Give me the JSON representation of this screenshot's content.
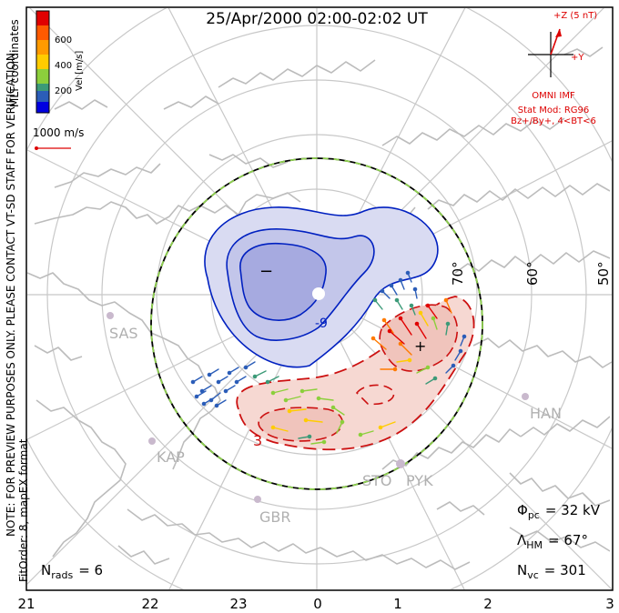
{
  "title": "25/Apr/2000 02:00-02:02 UT",
  "velocity_scale": {
    "label": "Vel [m/s]",
    "ticks": [
      "600",
      "400",
      "200"
    ],
    "colors": [
      "#e00000",
      "#ff7a00",
      "#ffcc00",
      "#8ccf3c",
      "#3c9a78",
      "#2b5db8",
      "#0000e0"
    ]
  },
  "coord_label": "MLT coordinates",
  "reference_vector": "1000 m/s",
  "notes": {
    "preview": "NOTE: FOR PREVIEW PURPOSES ONLY. PLEASE CONTACT VT-SD STAFF FOR VERIFICATION.",
    "fit": "FitOrder: 8, mapEX format"
  },
  "imf": {
    "z_label": "+Z (5 nT)",
    "y_label": "+Y",
    "source": "OMNI IMF",
    "model": "Stat Mod: RG96",
    "bin": "Bz+/By+, 4<BT<6"
  },
  "latitude_labels": [
    "70°",
    "60°",
    "50°"
  ],
  "stations": [
    "SAS",
    "KAP",
    "GBR",
    "STO",
    "PYK",
    "HAN"
  ],
  "contour_labels": {
    "neg_minus": "−",
    "neg_nine": "-9",
    "pos_three": "3",
    "pos_plus": "+"
  },
  "stats": {
    "nrads_label": "N",
    "nrads_sub": "rads",
    "nrads_value": "= 6",
    "phi_label": "Φ",
    "phi_sub": "pc",
    "phi_value": "= 32 kV",
    "lambda_label": "Λ",
    "lambda_sub": "HM",
    "lambda_value": "= 67°",
    "nvc_label": "N",
    "nvc_sub": "vc",
    "nvc_value": "= 301"
  },
  "mlt_labels": [
    "21",
    "22",
    "23",
    "0",
    "1",
    "2",
    "3"
  ],
  "colors": {
    "negative": "#0020c0",
    "positive": "#cc1010",
    "grid": "#c8c8c8",
    "coast": "#bcbcbc"
  }
}
